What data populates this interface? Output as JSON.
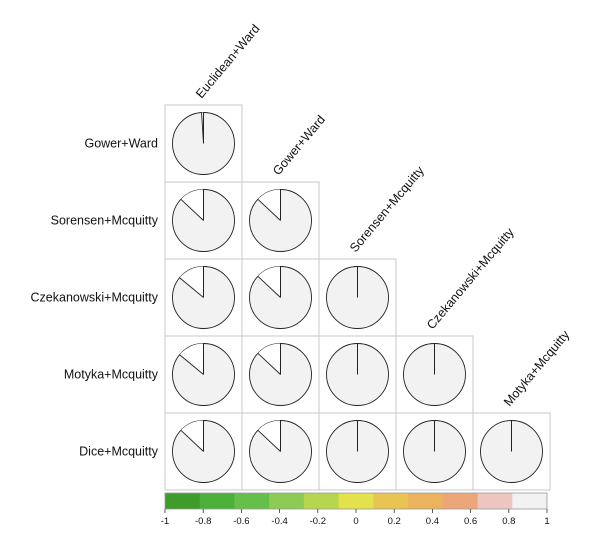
{
  "chart_data": {
    "type": "heatmap",
    "subtype": "correlation-pie-lower-triangle",
    "row_labels": [
      "Gower+Ward",
      "Sorensen+Mcquitty",
      "Czekanowski+Mcquitty",
      "Motyka+Mcquitty",
      "Dice+Mcquitty"
    ],
    "col_labels": [
      "Euclidean+Ward",
      "Gower+Ward",
      "Sorensen+Mcquitty",
      "Czekanowski+Mcquitty",
      "Motyka+Mcquitty"
    ],
    "values": [
      [
        0.99,
        null,
        null,
        null,
        null
      ],
      [
        0.87,
        0.87,
        null,
        null,
        null
      ],
      [
        0.86,
        0.87,
        1.0,
        null,
        null
      ],
      [
        0.86,
        0.87,
        1.0,
        1.0,
        null
      ],
      [
        0.87,
        0.87,
        1.0,
        1.0,
        1.0
      ]
    ],
    "colorbar": {
      "ticks": [
        "-1",
        "-0.8",
        "-0.6",
        "-0.4",
        "-0.2",
        "0",
        "0.2",
        "0.4",
        "0.6",
        "0.8",
        "1"
      ],
      "range": [
        -1,
        1
      ],
      "colors": [
        "#3f9b2a",
        "#4caf3a",
        "#66bf4a",
        "#8ccc55",
        "#b6d64f",
        "#e4e24c",
        "#e9c452",
        "#ebb35d",
        "#eda67a",
        "#efc5bf",
        "#f2f2f2"
      ]
    },
    "pie_fill": "#f2f2f2",
    "pie_stroke": "#222222",
    "cell_border": "#c8c8c8"
  }
}
